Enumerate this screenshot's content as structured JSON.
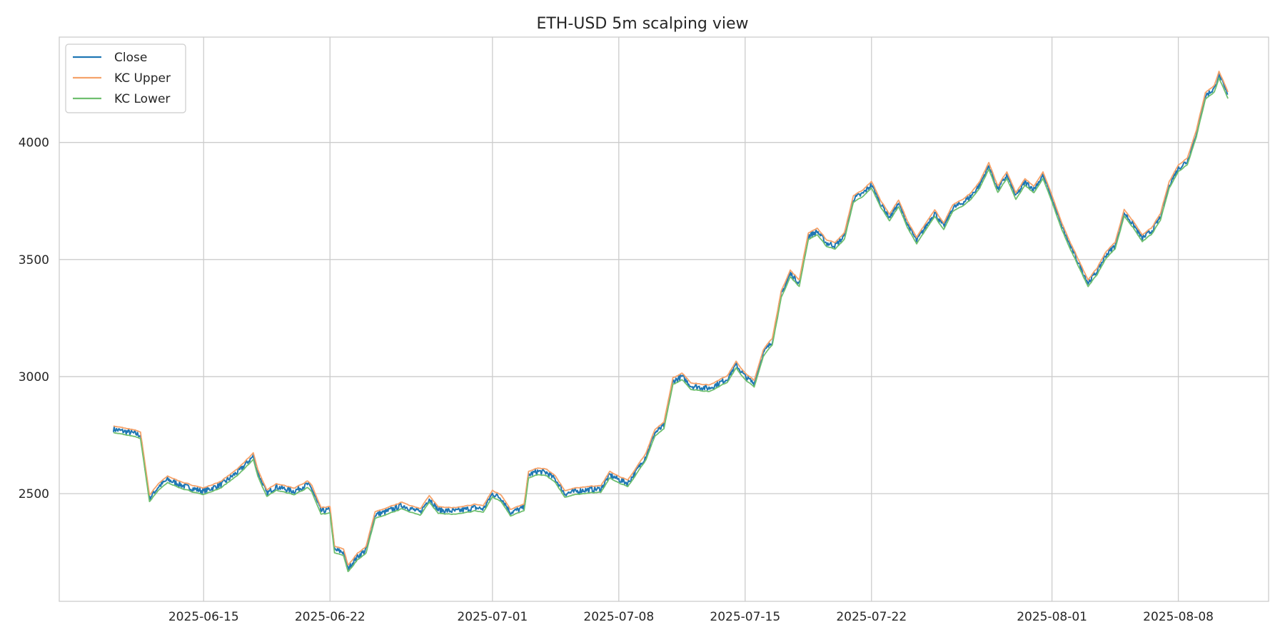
{
  "chart_data": {
    "type": "line",
    "title": "ETH-USD 5m scalping view",
    "xlabel": "",
    "ylabel": "",
    "x_axis": {
      "type": "date",
      "range": [
        "2025-06-07",
        "2025-08-13"
      ],
      "ticks": [
        "2025-06-15",
        "2025-06-22",
        "2025-07-01",
        "2025-07-08",
        "2025-07-15",
        "2025-07-22",
        "2025-08-01",
        "2025-08-08"
      ]
    },
    "y_axis": {
      "range": [
        2040,
        4450
      ],
      "ticks": [
        2500,
        3000,
        3500,
        4000
      ]
    },
    "grid": true,
    "legend": {
      "placement": "top-left"
    },
    "series": [
      {
        "name": "Close",
        "color": "#1f77b4",
        "offset": 0,
        "noise": 12
      },
      {
        "name": "KC Upper",
        "color": "#f5a26a",
        "offset": 14,
        "noise": 4
      },
      {
        "name": "KC Lower",
        "color": "#6fbf6f",
        "offset": -14,
        "noise": 4
      }
    ],
    "close_path": [
      [
        "2025-06-10",
        2775
      ],
      [
        "2025-06-11",
        2760
      ],
      [
        "2025-06-11T12:00",
        2750
      ],
      [
        "2025-06-12",
        2480
      ],
      [
        "2025-06-12T12:00",
        2530
      ],
      [
        "2025-06-13",
        2560
      ],
      [
        "2025-06-14",
        2530
      ],
      [
        "2025-06-15",
        2510
      ],
      [
        "2025-06-16",
        2540
      ],
      [
        "2025-06-17",
        2600
      ],
      [
        "2025-06-17T18:00",
        2660
      ],
      [
        "2025-06-18",
        2590
      ],
      [
        "2025-06-18T12:00",
        2500
      ],
      [
        "2025-06-19",
        2530
      ],
      [
        "2025-06-20",
        2510
      ],
      [
        "2025-06-20T18:00",
        2540
      ],
      [
        "2025-06-21",
        2520
      ],
      [
        "2025-06-21T12:00",
        2425
      ],
      [
        "2025-06-22",
        2430
      ],
      [
        "2025-06-22T06:00",
        2260
      ],
      [
        "2025-06-22T18:00",
        2250
      ],
      [
        "2025-06-23",
        2180
      ],
      [
        "2025-06-23T12:00",
        2230
      ],
      [
        "2025-06-24",
        2260
      ],
      [
        "2025-06-24T12:00",
        2410
      ],
      [
        "2025-06-25",
        2420
      ],
      [
        "2025-06-26",
        2450
      ],
      [
        "2025-06-27",
        2420
      ],
      [
        "2025-06-27T12:00",
        2480
      ],
      [
        "2025-06-28",
        2430
      ],
      [
        "2025-06-29",
        2425
      ],
      [
        "2025-06-30",
        2440
      ],
      [
        "2025-06-30T12:00",
        2435
      ],
      [
        "2025-07-01",
        2500
      ],
      [
        "2025-07-01T12:00",
        2480
      ],
      [
        "2025-07-02",
        2420
      ],
      [
        "2025-07-02T18:00",
        2440
      ],
      [
        "2025-07-03",
        2580
      ],
      [
        "2025-07-03T12:00",
        2595
      ],
      [
        "2025-07-04",
        2590
      ],
      [
        "2025-07-04T12:00",
        2560
      ],
      [
        "2025-07-05",
        2500
      ],
      [
        "2025-07-06",
        2515
      ],
      [
        "2025-07-07",
        2520
      ],
      [
        "2025-07-07T12:00",
        2580
      ],
      [
        "2025-07-08",
        2560
      ],
      [
        "2025-07-08T12:00",
        2545
      ],
      [
        "2025-07-09",
        2600
      ],
      [
        "2025-07-09T12:00",
        2660
      ],
      [
        "2025-07-10",
        2760
      ],
      [
        "2025-07-10T12:00",
        2790
      ],
      [
        "2025-07-11",
        2980
      ],
      [
        "2025-07-11T12:00",
        3000
      ],
      [
        "2025-07-12",
        2960
      ],
      [
        "2025-07-13",
        2950
      ],
      [
        "2025-07-14",
        2990
      ],
      [
        "2025-07-14T12:00",
        3050
      ],
      [
        "2025-07-15",
        3000
      ],
      [
        "2025-07-15T12:00",
        2970
      ],
      [
        "2025-07-16",
        3100
      ],
      [
        "2025-07-16T12:00",
        3150
      ],
      [
        "2025-07-17",
        3350
      ],
      [
        "2025-07-17T12:00",
        3440
      ],
      [
        "2025-07-18",
        3400
      ],
      [
        "2025-07-18T12:00",
        3600
      ],
      [
        "2025-07-19",
        3620
      ],
      [
        "2025-07-19T12:00",
        3570
      ],
      [
        "2025-07-20",
        3560
      ],
      [
        "2025-07-20T12:00",
        3600
      ],
      [
        "2025-07-21",
        3760
      ],
      [
        "2025-07-21T12:00",
        3780
      ],
      [
        "2025-07-22",
        3820
      ],
      [
        "2025-07-22T12:00",
        3740
      ],
      [
        "2025-07-23",
        3680
      ],
      [
        "2025-07-23T12:00",
        3740
      ],
      [
        "2025-07-24",
        3650
      ],
      [
        "2025-07-24T12:00",
        3580
      ],
      [
        "2025-07-25",
        3640
      ],
      [
        "2025-07-25T12:00",
        3700
      ],
      [
        "2025-07-26",
        3640
      ],
      [
        "2025-07-26T12:00",
        3720
      ],
      [
        "2025-07-27",
        3740
      ],
      [
        "2025-07-27T12:00",
        3770
      ],
      [
        "2025-07-28",
        3820
      ],
      [
        "2025-07-28T12:00",
        3900
      ],
      [
        "2025-07-29",
        3800
      ],
      [
        "2025-07-29T12:00",
        3860
      ],
      [
        "2025-07-30",
        3770
      ],
      [
        "2025-07-30T12:00",
        3830
      ],
      [
        "2025-07-31",
        3800
      ],
      [
        "2025-07-31T12:00",
        3860
      ],
      [
        "2025-08-01",
        3760
      ],
      [
        "2025-08-01T12:00",
        3650
      ],
      [
        "2025-08-02",
        3560
      ],
      [
        "2025-08-02T12:00",
        3480
      ],
      [
        "2025-08-03",
        3400
      ],
      [
        "2025-08-03T12:00",
        3450
      ],
      [
        "2025-08-04",
        3520
      ],
      [
        "2025-08-04T12:00",
        3560
      ],
      [
        "2025-08-05",
        3700
      ],
      [
        "2025-08-05T12:00",
        3650
      ],
      [
        "2025-08-06",
        3590
      ],
      [
        "2025-08-06T12:00",
        3620
      ],
      [
        "2025-08-07",
        3680
      ],
      [
        "2025-08-07T12:00",
        3820
      ],
      [
        "2025-08-08",
        3890
      ],
      [
        "2025-08-08T12:00",
        3920
      ],
      [
        "2025-08-09",
        4040
      ],
      [
        "2025-08-09T12:00",
        4200
      ],
      [
        "2025-08-10",
        4230
      ],
      [
        "2025-08-10T06:00",
        4290
      ],
      [
        "2025-08-10T18:00",
        4200
      ]
    ]
  }
}
